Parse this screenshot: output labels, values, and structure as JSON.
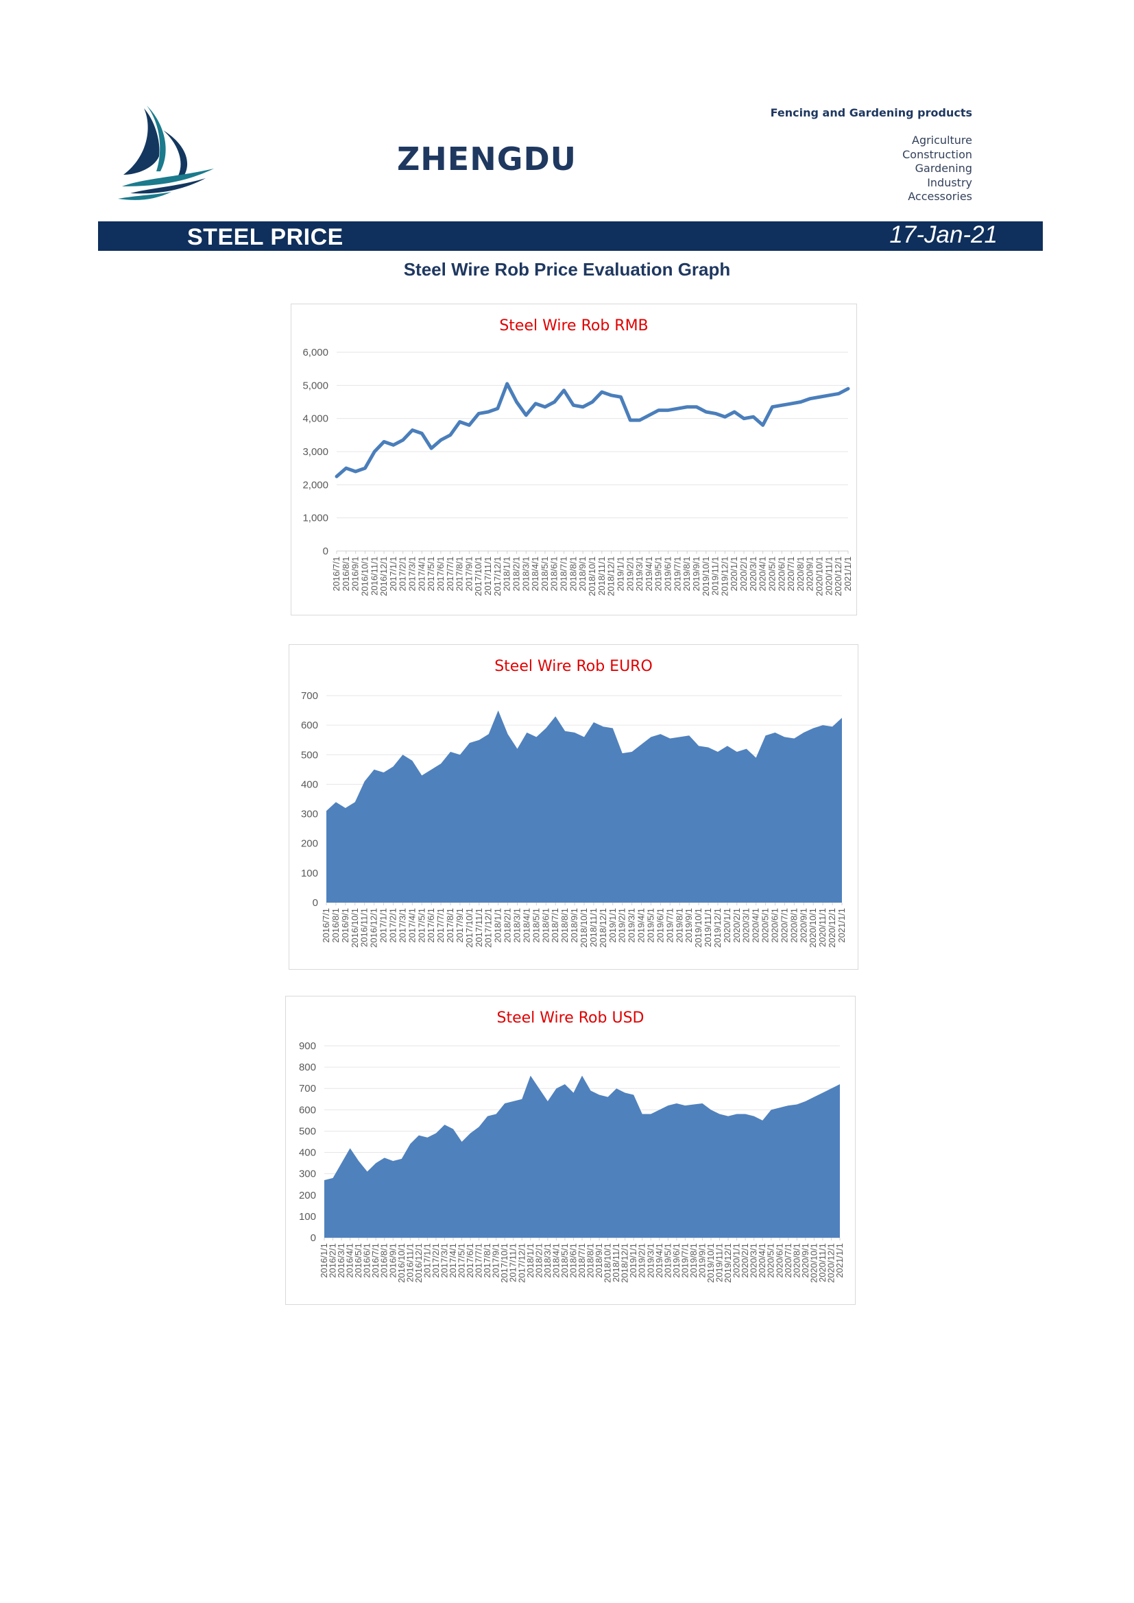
{
  "header": {
    "brand": "ZHENGDU",
    "tagline": "Fencing and Gardening products",
    "categories": [
      "Agriculture",
      "Construction",
      "Gardening",
      "Industry",
      "Accessories"
    ],
    "colors": {
      "navy": "#0f2f5c",
      "brand_text": "#1f3860",
      "logo_teal": "#1b7a8c",
      "logo_navy": "#13375f"
    }
  },
  "banner": {
    "title": "STEEL PRICE",
    "date": "17-Jan-21"
  },
  "document_title": "Steel Wire Rob Price Evaluation Graph",
  "chart_data": [
    {
      "type": "line",
      "title": "Steel Wire Rob RMB",
      "color": "#4a7ebb",
      "ylim": [
        0,
        6000
      ],
      "yticks": [
        "0",
        "1,000",
        "2,000",
        "3,000",
        "4,000",
        "5,000",
        "6,000"
      ],
      "grid": true,
      "xticks": [
        "2016/7/1",
        "2016/8/1",
        "2016/9/1",
        "2016/10/1",
        "2016/11/1",
        "2016/12/1",
        "2017/1/1",
        "2017/2/1",
        "2017/3/1",
        "2017/4/1",
        "2017/5/1",
        "2017/6/1",
        "2017/7/1",
        "2017/8/1",
        "2017/9/1",
        "2017/10/1",
        "2017/11/1",
        "2017/12/1",
        "2018/1/1",
        "2018/2/1",
        "2018/3/1",
        "2018/4/1",
        "2018/5/1",
        "2018/6/1",
        "2018/7/1",
        "2018/8/1",
        "2018/9/1",
        "2018/10/1",
        "2018/11/1",
        "2018/12/1",
        "2019/1/1",
        "2019/2/1",
        "2019/3/1",
        "2019/4/1",
        "2019/5/1",
        "2019/6/1",
        "2019/7/1",
        "2019/8/1",
        "2019/9/1",
        "2019/10/1",
        "2019/11/1",
        "2019/12/1",
        "2020/1/1",
        "2020/2/1",
        "2020/3/1",
        "2020/4/1",
        "2020/5/1",
        "2020/6/1",
        "2020/7/1",
        "2020/8/1",
        "2020/9/1",
        "2020/10/1",
        "2020/11/1",
        "2020/12/1",
        "2021/1/1"
      ],
      "x": [
        0,
        1,
        2,
        3,
        4,
        5,
        6,
        7,
        8,
        9,
        10,
        11,
        12,
        13,
        14,
        15,
        16,
        17,
        18,
        19,
        20,
        21,
        22,
        23,
        24,
        25,
        26,
        27,
        28,
        29,
        30,
        31,
        32,
        33,
        34,
        35,
        36,
        37,
        38,
        39,
        40,
        41,
        42,
        43,
        44,
        45,
        46,
        47,
        48,
        49,
        50,
        51,
        52,
        53,
        54
      ],
      "values": [
        2250,
        2500,
        2400,
        2500,
        3000,
        3300,
        3200,
        3350,
        3650,
        3550,
        3100,
        3350,
        3500,
        3900,
        3800,
        4150,
        4200,
        4300,
        5050,
        4500,
        4100,
        4450,
        4350,
        4500,
        4850,
        4400,
        4350,
        4500,
        4800,
        4700,
        4650,
        3950,
        3950,
        4100,
        4250,
        4250,
        4300,
        4350,
        4350,
        4200,
        4150,
        4050,
        4200,
        4000,
        4050,
        3800,
        4350,
        4400,
        4450,
        4500,
        4600,
        4650,
        4700,
        4750,
        4900
      ]
    },
    {
      "type": "area",
      "title": "Steel Wire Rob EURO",
      "color": "#4f81bd",
      "ylim": [
        0,
        700
      ],
      "yticks": [
        "0",
        "100",
        "200",
        "300",
        "400",
        "500",
        "600",
        "700"
      ],
      "grid": true,
      "xticks": [
        "2016/7/1",
        "2016/8/1",
        "2016/9/1",
        "2016/10/1",
        "2016/11/1",
        "2016/12/1",
        "2017/1/1",
        "2017/2/1",
        "2017/3/1",
        "2017/4/1",
        "2017/5/1",
        "2017/6/1",
        "2017/7/1",
        "2017/8/1",
        "2017/9/1",
        "2017/10/1",
        "2017/11/1",
        "2017/12/1",
        "2018/1/1",
        "2018/2/1",
        "2018/3/1",
        "2018/4/1",
        "2018/5/1",
        "2018/6/1",
        "2018/7/1",
        "2018/8/1",
        "2018/9/1",
        "2018/10/1",
        "2018/11/1",
        "2018/12/1",
        "2019/1/1",
        "2019/2/1",
        "2019/3/1",
        "2019/4/1",
        "2019/5/1",
        "2019/6/1",
        "2019/7/1",
        "2019/8/1",
        "2019/9/1",
        "2019/10/1",
        "2019/11/1",
        "2019/12/1",
        "2020/1/1",
        "2020/2/1",
        "2020/3/1",
        "2020/4/1",
        "2020/5/1",
        "2020/6/1",
        "2020/7/1",
        "2020/8/1",
        "2020/9/1",
        "2020/10/1",
        "2020/11/1",
        "2020/12/1",
        "2021/1/1"
      ],
      "x": [
        0,
        1,
        2,
        3,
        4,
        5,
        6,
        7,
        8,
        9,
        10,
        11,
        12,
        13,
        14,
        15,
        16,
        17,
        18,
        19,
        20,
        21,
        22,
        23,
        24,
        25,
        26,
        27,
        28,
        29,
        30,
        31,
        32,
        33,
        34,
        35,
        36,
        37,
        38,
        39,
        40,
        41,
        42,
        43,
        44,
        45,
        46,
        47,
        48,
        49,
        50,
        51,
        52,
        53,
        54
      ],
      "values": [
        310,
        340,
        320,
        340,
        410,
        450,
        440,
        460,
        500,
        480,
        430,
        450,
        470,
        510,
        500,
        540,
        550,
        570,
        650,
        570,
        520,
        575,
        560,
        590,
        630,
        580,
        575,
        560,
        610,
        595,
        590,
        505,
        510,
        535,
        560,
        570,
        555,
        560,
        565,
        530,
        525,
        510,
        530,
        510,
        520,
        490,
        565,
        575,
        560,
        555,
        575,
        590,
        600,
        595,
        625
      ]
    },
    {
      "type": "area",
      "title": "Steel Wire Rob USD",
      "color": "#4f81bd",
      "ylim": [
        0,
        900
      ],
      "yticks": [
        "0",
        "100",
        "200",
        "300",
        "400",
        "500",
        "600",
        "700",
        "800",
        "900"
      ],
      "grid": true,
      "xticks": [
        "2016/1/1",
        "2016/2/1",
        "2016/3/1",
        "2016/4/1",
        "2016/5/1",
        "2016/6/1",
        "2016/7/1",
        "2016/8/1",
        "2016/9/1",
        "2016/10/1",
        "2016/11/1",
        "2016/12/1",
        "2017/1/1",
        "2017/2/1",
        "2017/3/1",
        "2017/4/1",
        "2017/5/1",
        "2017/6/1",
        "2017/7/1",
        "2017/8/1",
        "2017/9/1",
        "2017/10/1",
        "2017/11/1",
        "2017/12/1",
        "2018/1/1",
        "2018/2/1",
        "2018/3/1",
        "2018/4/1",
        "2018/5/1",
        "2018/6/1",
        "2018/7/1",
        "2018/8/1",
        "2018/9/1",
        "2018/10/1",
        "2018/11/1",
        "2018/12/1",
        "2019/1/1",
        "2019/2/1",
        "2019/3/1",
        "2019/4/1",
        "2019/5/1",
        "2019/6/1",
        "2019/7/1",
        "2019/8/1",
        "2019/9/1",
        "2019/10/1",
        "2019/11/1",
        "2019/12/1",
        "2020/1/1",
        "2020/2/1",
        "2020/3/1",
        "2020/4/1",
        "2020/5/1",
        "2020/6/1",
        "2020/7/1",
        "2020/8/1",
        "2020/9/1",
        "2020/10/1",
        "2020/11/1",
        "2020/12/1",
        "2021/1/1"
      ],
      "x": [
        0,
        1,
        2,
        3,
        4,
        5,
        6,
        7,
        8,
        9,
        10,
        11,
        12,
        13,
        14,
        15,
        16,
        17,
        18,
        19,
        20,
        21,
        22,
        23,
        24,
        25,
        26,
        27,
        28,
        29,
        30,
        31,
        32,
        33,
        34,
        35,
        36,
        37,
        38,
        39,
        40,
        41,
        42,
        43,
        44,
        45,
        46,
        47,
        48,
        49,
        50,
        51,
        52,
        53,
        54,
        55,
        56,
        57,
        58,
        59,
        60
      ],
      "values": [
        270,
        280,
        350,
        420,
        360,
        310,
        350,
        375,
        360,
        370,
        440,
        480,
        470,
        490,
        530,
        510,
        450,
        490,
        520,
        570,
        580,
        630,
        640,
        650,
        760,
        700,
        640,
        700,
        720,
        680,
        760,
        690,
        670,
        660,
        700,
        680,
        670,
        580,
        580,
        600,
        620,
        630,
        620,
        625,
        630,
        600,
        580,
        570,
        580,
        580,
        570,
        550,
        600,
        610,
        620,
        625,
        640,
        660,
        680,
        700,
        720
      ]
    }
  ]
}
